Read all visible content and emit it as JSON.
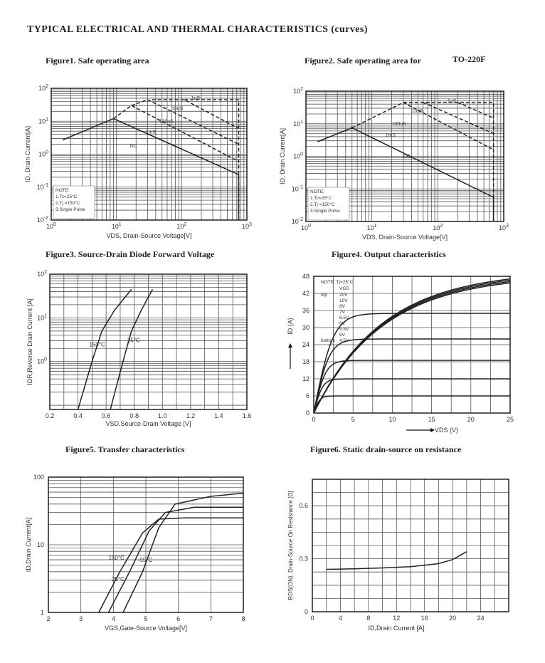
{
  "page_title": "TYPICAL ELECTRICAL AND THERMAL CHARACTERISTICS (curves)",
  "figures": {
    "fig1": {
      "title": "Figure1. Safe operating area"
    },
    "fig2": {
      "title": "Figure2. Safe operating area for",
      "title_extra": "TO-220F"
    },
    "fig3": {
      "title": "Figure3. Source-Drain Diode Forward Voltage"
    },
    "fig4": {
      "title": "Figure4. Output characteristics"
    },
    "fig5": {
      "title": "Figure5. Transfer characteristics"
    },
    "fig6": {
      "title": "Figure6. Static drain-source on resistance"
    }
  },
  "chart_data": [
    {
      "id": "fig1",
      "type": "line",
      "scale": "log-log",
      "xlabel": "VDS, Drain-Source Voltage[V]",
      "ylabel": "ID, Drain Current[A]",
      "xlim": [
        1,
        1000
      ],
      "ylim": [
        0.01,
        100
      ],
      "xticks": [
        "10^0",
        "10^1",
        "10^2",
        "10^3"
      ],
      "yticks": [
        "10^-2",
        "10^-1",
        "10^0",
        "10^1",
        "10^2"
      ],
      "note": [
        "NOTE:",
        "1.Tc=25°C",
        "2.Tj =150°C",
        "3.Single Pulse"
      ],
      "series": [
        {
          "name": "DC",
          "style": "solid",
          "points": [
            [
              1.5,
              2.7
            ],
            [
              9,
              12
            ],
            [
              750,
              0.24
            ],
            [
              750,
              0.01
            ]
          ]
        },
        {
          "name": "1mS",
          "style": "dash",
          "points": [
            [
              9,
              12
            ],
            [
              17,
              30
            ],
            [
              750,
              0.6
            ]
          ]
        },
        {
          "name": "100uS",
          "style": "dash",
          "points": [
            [
              17,
              30
            ],
            [
              30,
              45
            ],
            [
              750,
              2
            ]
          ]
        },
        {
          "name": "10uS",
          "style": "dash",
          "points": [
            [
              35,
              45
            ],
            [
              110,
              45
            ],
            [
              750,
              6
            ]
          ]
        },
        {
          "name": "1uS",
          "style": "dash",
          "points": [
            [
              110,
              45
            ],
            [
              750,
              45
            ],
            [
              750,
              0.01
            ]
          ]
        }
      ],
      "labels": [
        "1uS",
        "10uS",
        "100uS",
        "1mS",
        "DC"
      ]
    },
    {
      "id": "fig2",
      "type": "line",
      "scale": "log-log",
      "xlabel": "VDS, Drain-Source Voltage[V]",
      "ylabel": "ID, Drain Current[A]",
      "xlim": [
        1,
        1000
      ],
      "ylim": [
        0.01,
        100
      ],
      "xticks": [
        "10^0",
        "10^1",
        "10^2",
        "10^3"
      ],
      "yticks": [
        "10^-2",
        "10^-1",
        "10^0",
        "10^1",
        "10^2"
      ],
      "note": [
        "NOTE:",
        "1.Tc=25°C",
        "2.Tj =150°C",
        "3.Single Pulse"
      ],
      "series": [
        {
          "name": "DC",
          "style": "solid",
          "points": [
            [
              1.5,
              2.8
            ],
            [
              5,
              7.5
            ],
            [
              700,
              0.055
            ],
            [
              700,
              0.01
            ]
          ]
        },
        {
          "name": "1mS",
          "style": "dash",
          "points": [
            [
              5,
              7.5
            ],
            [
              30,
              45
            ],
            [
              700,
              1.6
            ]
          ]
        },
        {
          "name": "100uS",
          "style": "dash",
          "points": [
            [
              60,
              45
            ],
            [
              700,
              5
            ]
          ]
        },
        {
          "name": "10uS",
          "style": "dash",
          "points": [
            [
              200,
              45
            ],
            [
              700,
              15
            ]
          ]
        },
        {
          "name": "1uS",
          "style": "dash",
          "points": [
            [
              30,
              45
            ],
            [
              700,
              45
            ],
            [
              700,
              0.01
            ]
          ]
        }
      ],
      "labels": [
        "1uS",
        "10uS",
        "100uS",
        "1mS",
        "DC"
      ]
    },
    {
      "id": "fig3",
      "type": "line",
      "scale": "lin-log",
      "xlabel": "VSD,Source-Drain Voltage [V]",
      "ylabel": "IDR,Reverse Drain Current [A]",
      "xlim": [
        0.2,
        1.6
      ],
      "ylim": [
        0.08,
        100
      ],
      "xticks": [
        "0.2",
        "0.4",
        "0.6",
        "0.8",
        "1.0",
        "1.2",
        "1.4",
        "1.6"
      ],
      "yticks": [
        "10^0",
        "10^1",
        "10^2"
      ],
      "series": [
        {
          "name": "150°C",
          "points": [
            [
              0.4,
              0.08
            ],
            [
              0.5,
              1
            ],
            [
              0.57,
              5
            ],
            [
              0.66,
              15
            ],
            [
              0.78,
              45
            ]
          ]
        },
        {
          "name": "25°C",
          "points": [
            [
              0.63,
              0.08
            ],
            [
              0.72,
              1
            ],
            [
              0.78,
              5
            ],
            [
              0.85,
              15
            ],
            [
              0.93,
              45
            ]
          ]
        }
      ],
      "labels": [
        "150°C",
        "25°C"
      ]
    },
    {
      "id": "fig4",
      "type": "line",
      "xlabel": "VDS (V)",
      "ylabel": "ID (A)",
      "xlim": [
        0,
        25
      ],
      "ylim": [
        0,
        48
      ],
      "xticks": [
        "0",
        "5",
        "10",
        "15",
        "20",
        "25"
      ],
      "yticks": [
        "0",
        "6",
        "12",
        "18",
        "24",
        "30",
        "36",
        "42",
        "48"
      ],
      "legend": {
        "title": "NOTE: Tj=25°C",
        "header": "VGS",
        "top": "top",
        "bottom": "bottom",
        "values": [
          "20V",
          "10V",
          "8V",
          "7V",
          "6.5V",
          "6V",
          "5.5V",
          "5V",
          "4.5V"
        ]
      },
      "series": [
        {
          "name": "20V",
          "plateau": 46
        },
        {
          "name": "10V",
          "plateau": 45.5
        },
        {
          "name": "8V",
          "plateau": 45
        },
        {
          "name": "7V",
          "plateau": 44.5
        },
        {
          "name": "6.5V",
          "plateau": 35
        },
        {
          "name": "6V",
          "plateau": 26
        },
        {
          "name": "5.5V",
          "plateau": 18.5
        },
        {
          "name": "5V",
          "plateau": 12
        },
        {
          "name": "4.5V",
          "plateau": 6
        }
      ]
    },
    {
      "id": "fig5",
      "type": "line",
      "scale": "lin-log",
      "xlabel": "VGS,Gate-Source Voltage[V]",
      "ylabel": "ID,Drain Current[A]",
      "xlim": [
        2,
        8
      ],
      "ylim": [
        1,
        100
      ],
      "xticks": [
        "2",
        "3",
        "4",
        "5",
        "6",
        "7",
        "8"
      ],
      "yticks": [
        "1",
        "10",
        "100"
      ],
      "series": [
        {
          "name": "150°C",
          "points": [
            [
              3.55,
              1
            ],
            [
              4.2,
              4
            ],
            [
              4.9,
              15
            ],
            [
              5.4,
              24
            ],
            [
              6.2,
              25
            ],
            [
              8,
              25
            ]
          ]
        },
        {
          "name": "25°C",
          "points": [
            [
              3.85,
              1
            ],
            [
              4.5,
              4
            ],
            [
              5.1,
              16
            ],
            [
              5.6,
              30
            ],
            [
              6.5,
              36
            ],
            [
              8,
              36
            ]
          ]
        },
        {
          "name": "-55°C",
          "points": [
            [
              4.3,
              1
            ],
            [
              4.9,
              4
            ],
            [
              5.4,
              18
            ],
            [
              5.9,
              40
            ],
            [
              7,
              52
            ],
            [
              8,
              58
            ]
          ]
        }
      ],
      "labels": [
        "150°C",
        "25°C",
        "-55°C"
      ]
    },
    {
      "id": "fig6",
      "type": "line",
      "xlabel": "ID,Drain Current [A]",
      "ylabel": "RDS(ON), Drain-Source On Resistance [Ω]",
      "xlim": [
        0,
        28
      ],
      "ylim": [
        0,
        0.75
      ],
      "xticks": [
        "0",
        "4",
        "8",
        "12",
        "16",
        "20",
        "24"
      ],
      "yticks": [
        "0",
        "0.3",
        "0.6"
      ],
      "series": [
        {
          "name": "RDS(on)",
          "points": [
            [
              2,
              0.24
            ],
            [
              6,
              0.243
            ],
            [
              10,
              0.248
            ],
            [
              14,
              0.255
            ],
            [
              18,
              0.272
            ],
            [
              20,
              0.295
            ],
            [
              22,
              0.34
            ]
          ]
        }
      ]
    }
  ]
}
